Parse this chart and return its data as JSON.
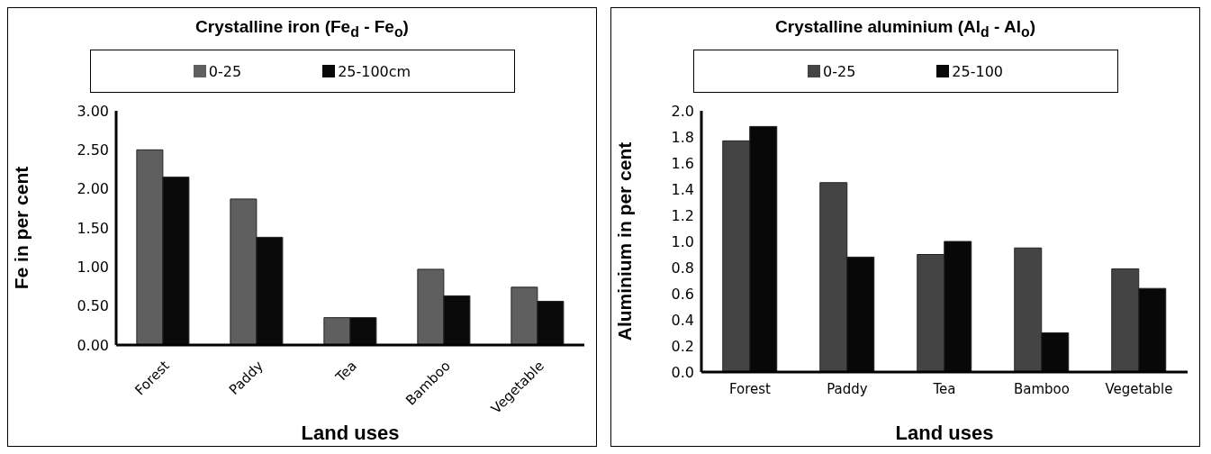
{
  "chart_data": [
    {
      "type": "bar",
      "title": "Crystalline iron (Fe$_{d}$ - Fe$_{o}$)",
      "xlabel": "Land uses",
      "ylabel": "Fe in per cent",
      "categories": [
        "Forest",
        "Paddy",
        "Tea",
        "Bamboo",
        "Vegetable"
      ],
      "series": [
        {
          "name": "0-25",
          "color": "#5f5f5f",
          "values": [
            2.5,
            1.87,
            0.35,
            0.97,
            0.74
          ]
        },
        {
          "name": "25-100cm",
          "color": "#0a0a0a",
          "values": [
            2.15,
            1.38,
            0.35,
            0.63,
            0.56
          ]
        }
      ],
      "ylim": [
        0,
        3
      ],
      "yticks": [
        {
          "value": 0,
          "label": "0.00"
        },
        {
          "value": 0.5,
          "label": "0.50"
        },
        {
          "value": 1,
          "label": "1.00"
        },
        {
          "value": 1.5,
          "label": "1.50"
        },
        {
          "value": 2,
          "label": "2.00"
        },
        {
          "value": 2.5,
          "label": "2.50"
        },
        {
          "value": 3,
          "label": "3.00"
        }
      ],
      "grid": false,
      "legend": "top"
    },
    {
      "type": "bar",
      "title": "Crystalline aluminium  (Al$_{d}$ - Al$_{o}$)",
      "xlabel": "Land uses",
      "ylabel": "Aluminium in per cent",
      "categories": [
        "Forest",
        "Paddy",
        "Tea",
        "Bamboo",
        "Vegetable"
      ],
      "series": [
        {
          "name": "0-25",
          "color": "#444444",
          "values": [
            1.77,
            1.45,
            0.9,
            0.95,
            0.79
          ]
        },
        {
          "name": "25-100",
          "color": "#080808",
          "values": [
            1.88,
            0.88,
            1.0,
            0.3,
            0.64
          ]
        }
      ],
      "ylim": [
        0,
        2
      ],
      "yticks": [
        {
          "value": 0,
          "label": "0.0"
        },
        {
          "value": 0.2,
          "label": "0.2"
        },
        {
          "value": 0.4,
          "label": "0.4"
        },
        {
          "value": 0.6,
          "label": "0.6"
        },
        {
          "value": 0.8,
          "label": "0.8"
        },
        {
          "value": 1,
          "label": "1.0"
        },
        {
          "value": 1.2,
          "label": "1.2"
        },
        {
          "value": 1.4,
          "label": "1.4"
        },
        {
          "value": 1.6,
          "label": "1.6"
        },
        {
          "value": 1.8,
          "label": "1.8"
        },
        {
          "value": 2,
          "label": "2.0"
        }
      ],
      "grid": false,
      "legend": "top"
    }
  ]
}
